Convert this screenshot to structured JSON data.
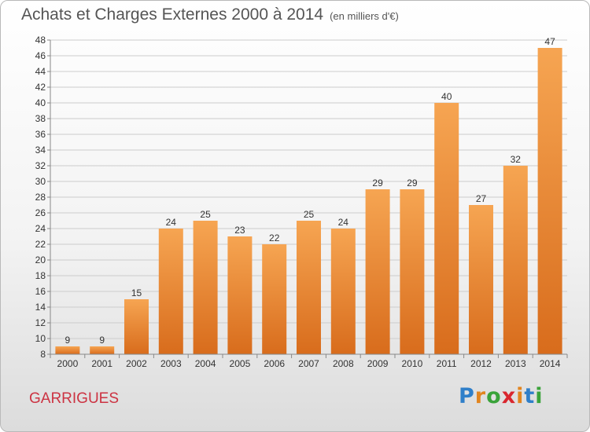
{
  "title": "Achats et Charges Externes 2000 à 2014",
  "subtitle": "(en milliers d'€)",
  "commune": "GARRIGUES",
  "logo": {
    "text": "Proxiti",
    "letters": [
      {
        "ch": "P",
        "color": "#2f7fc9"
      },
      {
        "ch": "r",
        "color": "#e2851f"
      },
      {
        "ch": "o",
        "color": "#3aa33a"
      },
      {
        "ch": "x",
        "color": "#d9262e"
      },
      {
        "ch": "i",
        "color": "#e2851f"
      },
      {
        "ch": "t",
        "color": "#2f7fc9"
      },
      {
        "ch": "i",
        "color": "#3aa33a"
      }
    ]
  },
  "colors": {
    "bar_top": "#f6a552",
    "bar_bottom": "#d86c1c",
    "grid": "#cccccc",
    "axis": "#888888",
    "text": "#333333"
  },
  "chart_data": {
    "type": "bar",
    "categories": [
      "2000",
      "2001",
      "2002",
      "2003",
      "2004",
      "2005",
      "2006",
      "2007",
      "2008",
      "2009",
      "2010",
      "2011",
      "2012",
      "2013",
      "2014"
    ],
    "values": [
      9,
      9,
      15,
      24,
      25,
      23,
      22,
      25,
      24,
      29,
      29,
      40,
      27,
      32,
      47
    ],
    "ylim": [
      8,
      48
    ],
    "ytick_step": 2,
    "grid": true,
    "legend": "none"
  }
}
